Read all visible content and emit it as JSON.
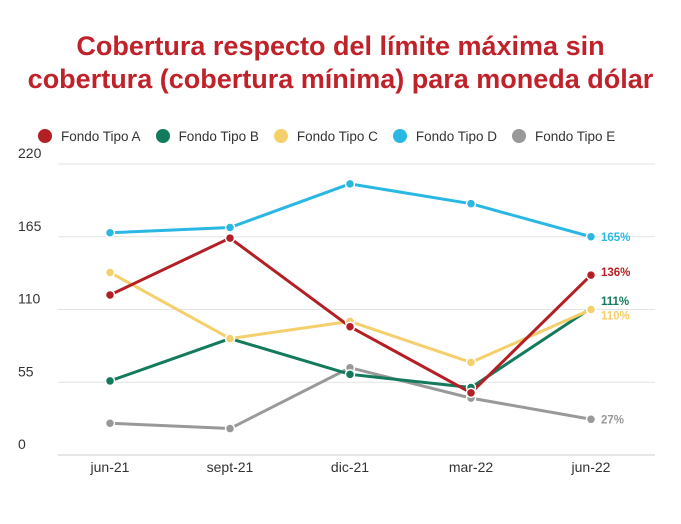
{
  "chart_data": {
    "type": "line",
    "title_lines": [
      "Cobertura respecto del límite máxima sin",
      "cobertura (cobertura mínima) para moneda dólar"
    ],
    "categories": [
      "jun-21",
      "sept-21",
      "dic-21",
      "mar-22",
      "jun-22"
    ],
    "ylim": [
      0,
      220
    ],
    "yticks": [
      0,
      55,
      110,
      165,
      220
    ],
    "grid": true,
    "legend_position": "top",
    "series": [
      {
        "name": "Fondo Tipo A",
        "color": "#b31f24",
        "values": [
          121,
          164,
          97,
          47,
          136
        ],
        "end_label": "136%"
      },
      {
        "name": "Fondo Tipo B",
        "color": "#137a5e",
        "values": [
          56,
          88,
          61,
          51,
          111
        ],
        "end_label": "111%"
      },
      {
        "name": "Fondo Tipo C",
        "color": "#f5cf6b",
        "values": [
          138,
          88,
          101,
          70,
          110
        ],
        "end_label": "110%"
      },
      {
        "name": "Fondo Tipo D",
        "color": "#29b7e3",
        "values": [
          168,
          172,
          205,
          190,
          165
        ],
        "end_label": "165%"
      },
      {
        "name": "Fondo Tipo E",
        "color": "#999999",
        "values": [
          24,
          20,
          66,
          43,
          27
        ],
        "end_label": "27%"
      }
    ]
  }
}
